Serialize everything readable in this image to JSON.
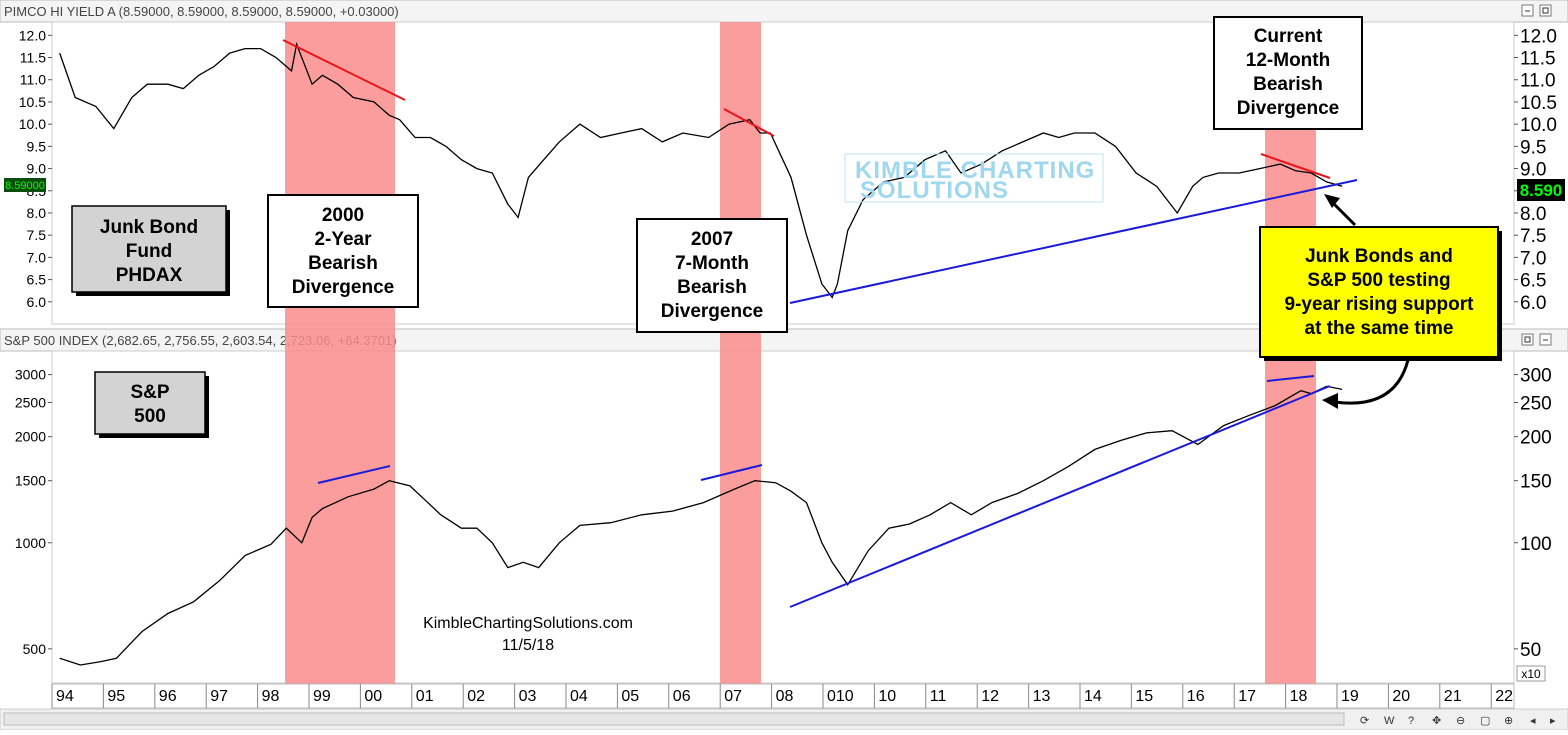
{
  "top_panel": {
    "header": "PIMCO HI YIELD A (8.59000, 8.59000, 8.59000, 8.59000, +0.03000)",
    "left_price_badge": "8.59000",
    "right_price_badge": "8.590",
    "label_box": [
      "Junk Bond",
      "Fund",
      "PHDAX"
    ]
  },
  "bottom_panel": {
    "header": "S&P 500 INDEX (2,682.65, 2,756.55, 2,603.54, 2,723.06, +64.3701)",
    "label_box": [
      "S&P",
      "500"
    ],
    "right_scale_note": "x10"
  },
  "annotations": {
    "box_2000": [
      "2000",
      "2-Year",
      "Bearish",
      "Divergence"
    ],
    "box_2007": [
      "2007",
      "7-Month",
      "Bearish",
      "Divergence"
    ],
    "box_current": [
      "Current",
      "12-Month",
      "Bearish",
      "Divergence"
    ],
    "callout": [
      "Junk Bonds and",
      "S&P 500 testing",
      "9-year rising support",
      "at the same time"
    ],
    "watermark_line1": "KIMBLE CHARTING",
    "watermark_line2": "SOLUTIONS",
    "credit_site": "KimbleChartingSolutions.com",
    "credit_date": "11/5/18"
  },
  "x_axis_labels": [
    "94",
    "95",
    "96",
    "97",
    "98",
    "99",
    "00",
    "01",
    "02",
    "03",
    "04",
    "05",
    "06",
    "07",
    "08",
    "010",
    "10",
    "11",
    "12",
    "13",
    "14",
    "15",
    "16",
    "17",
    "18",
    "19",
    "20",
    "21",
    "22"
  ],
  "controls": [
    "W",
    "?",
    "⊖",
    "▢",
    "✥"
  ],
  "colors": {
    "divergence_band": "#fb8c8c",
    "trend_red": "#e8131b",
    "trend_blue": "#1a1adb",
    "callout_bg": "#ffff00",
    "price_badge_bg": "#0c4d0c",
    "price_badge_fg": "#00ff00"
  },
  "chart_data": [
    {
      "type": "line",
      "title": "PIMCO HI YIELD A",
      "y_scale": "linear",
      "ylim": [
        5.5,
        12.3
      ],
      "y_ticks_left": [
        6.0,
        6.5,
        7.0,
        7.5,
        8.0,
        8.5,
        9.0,
        9.5,
        10.0,
        10.5,
        11.0,
        11.5,
        12.0
      ],
      "y_ticks_right": [
        6.0,
        6.5,
        7.0,
        7.5,
        8.0,
        8.5,
        9.0,
        9.5,
        10.0,
        10.5,
        11.0,
        11.5,
        12.0
      ],
      "series": [
        {
          "name": "PHDAX",
          "x": [
            1993.9,
            1994.2,
            1994.6,
            1994.95,
            1995.3,
            1995.6,
            1996.0,
            1996.3,
            1996.6,
            1996.9,
            1997.2,
            1997.5,
            1997.8,
            1998.1,
            1998.4,
            1998.5,
            1998.8,
            1999.0,
            1999.3,
            1999.6,
            2000.0,
            2000.3,
            2000.5,
            2000.8,
            2001.1,
            2001.4,
            2001.7,
            2002.0,
            2002.3,
            2002.6,
            2002.8,
            2003.0,
            2003.3,
            2003.6,
            2004.0,
            2004.4,
            2004.8,
            2005.2,
            2005.6,
            2006.0,
            2006.5,
            2006.9,
            2007.3,
            2007.5,
            2007.7,
            2007.9,
            2008.1,
            2008.4,
            2008.7,
            2008.9,
            2009.0,
            2009.2,
            2009.5,
            2009.9,
            2010.3,
            2010.7,
            2011.1,
            2011.4,
            2011.8,
            2012.2,
            2012.6,
            2013.0,
            2013.3,
            2013.6,
            2014.0,
            2014.4,
            2014.8,
            2015.2,
            2015.6,
            2015.9,
            2016.1,
            2016.4,
            2016.8,
            2017.2,
            2017.6,
            2017.9,
            2018.2,
            2018.5,
            2018.8
          ],
          "y": [
            11.6,
            10.6,
            10.4,
            9.9,
            10.6,
            10.9,
            10.9,
            10.8,
            11.1,
            11.3,
            11.6,
            11.7,
            11.7,
            11.5,
            11.2,
            11.8,
            10.9,
            11.1,
            10.9,
            10.6,
            10.5,
            10.2,
            10.1,
            9.7,
            9.7,
            9.5,
            9.2,
            9.0,
            8.9,
            8.2,
            7.9,
            8.8,
            9.2,
            9.6,
            10.0,
            9.7,
            9.8,
            9.9,
            9.6,
            9.8,
            9.7,
            10.0,
            10.1,
            9.8,
            9.8,
            9.3,
            8.8,
            7.5,
            6.4,
            6.1,
            6.4,
            7.6,
            8.3,
            8.7,
            8.8,
            9.2,
            9.4,
            8.9,
            9.1,
            9.4,
            9.6,
            9.8,
            9.7,
            9.8,
            9.8,
            9.5,
            8.9,
            8.6,
            8.0,
            8.6,
            8.8,
            8.9,
            8.9,
            9.0,
            9.1,
            8.95,
            8.9,
            8.7,
            8.6
          ]
        }
      ]
    },
    {
      "type": "line",
      "title": "S&P 500 INDEX",
      "y_scale": "log",
      "ylim": [
        400,
        3500
      ],
      "y_ticks_left": [
        500,
        1000,
        1500,
        2000,
        2500,
        3000
      ],
      "y_ticks_right": [
        50,
        100,
        150,
        200,
        250,
        300
      ],
      "series": [
        {
          "name": "S&P 500",
          "x": [
            1993.9,
            1994.3,
            1994.7,
            1995.0,
            1995.5,
            1996.0,
            1996.5,
            1997.0,
            1997.5,
            1998.0,
            1998.3,
            1998.6,
            1998.8,
            1999.0,
            1999.5,
            2000.0,
            2000.3,
            2000.7,
            2001.0,
            2001.3,
            2001.7,
            2002.0,
            2002.3,
            2002.6,
            2002.9,
            2003.2,
            2003.6,
            2004.0,
            2004.6,
            2005.2,
            2005.8,
            2006.4,
            2007.0,
            2007.4,
            2007.8,
            2008.1,
            2008.4,
            2008.7,
            2008.9,
            2009.2,
            2009.6,
            2010.0,
            2010.4,
            2010.8,
            2011.2,
            2011.6,
            2012.0,
            2012.5,
            2013.0,
            2013.5,
            2014.0,
            2014.5,
            2015.0,
            2015.5,
            2016.0,
            2016.5,
            2017.0,
            2017.5,
            2018.0,
            2018.2,
            2018.5,
            2018.8
          ],
          "y": [
            470,
            450,
            460,
            470,
            560,
            630,
            680,
            780,
            920,
            990,
            1100,
            1000,
            1180,
            1250,
            1350,
            1420,
            1500,
            1450,
            1320,
            1200,
            1100,
            1100,
            1000,
            850,
            880,
            850,
            1000,
            1120,
            1140,
            1200,
            1230,
            1300,
            1420,
            1500,
            1480,
            1400,
            1300,
            1000,
            880,
            760,
            950,
            1100,
            1130,
            1200,
            1300,
            1200,
            1300,
            1380,
            1500,
            1650,
            1840,
            1950,
            2050,
            2080,
            1900,
            2150,
            2300,
            2450,
            2700,
            2650,
            2780,
            2723
          ]
        }
      ]
    }
  ]
}
